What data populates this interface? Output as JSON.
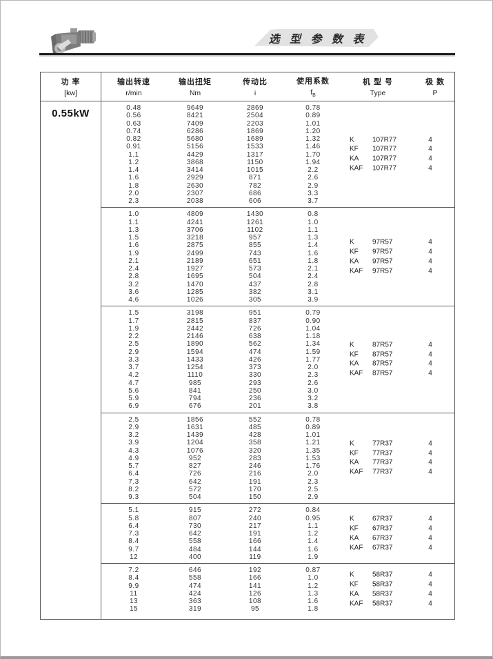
{
  "page": {
    "title": "选 型 参 数 表"
  },
  "table": {
    "headers": {
      "power": {
        "line1": "功  率",
        "line2": "[kw]"
      },
      "speed": {
        "line1": "输出转速",
        "line2": "r/min"
      },
      "torque": {
        "line1": "输出扭矩",
        "line2": "Nm"
      },
      "ratio": {
        "line1": "传动比",
        "line2": "i"
      },
      "factor": {
        "line1": "使用系数",
        "symbol": "f",
        "symbol_sub": "B"
      },
      "model": {
        "line1": "机 型 号",
        "line2": "Type"
      },
      "poles": {
        "line1": "极  数",
        "line2": "P"
      }
    },
    "power_value": "0.55kW",
    "groups": [
      {
        "rows": [
          [
            "0.48",
            "9649",
            "2869",
            "0.78"
          ],
          [
            "0.56",
            "8421",
            "2504",
            "0.89"
          ],
          [
            "0.63",
            "7409",
            "2203",
            "1.01"
          ],
          [
            "0.74",
            "6286",
            "1869",
            "1.20"
          ],
          [
            "0.82",
            "5680",
            "1689",
            "1.32"
          ],
          [
            "0.91",
            "5156",
            "1533",
            "1.46"
          ],
          [
            "1.1",
            "4429",
            "1317",
            "1.70"
          ],
          [
            "1.2",
            "3868",
            "1150",
            "1.94"
          ],
          [
            "1.4",
            "3414",
            "1015",
            "2.2"
          ],
          [
            "1.6",
            "2929",
            "871",
            "2.6"
          ],
          [
            "1.8",
            "2630",
            "782",
            "2.9"
          ],
          [
            "2.0",
            "2307",
            "686",
            "3.3"
          ],
          [
            "2.3",
            "2038",
            "606",
            "3.7"
          ]
        ],
        "models": [
          {
            "prefix": "K",
            "code": "107R77",
            "poles": "4"
          },
          {
            "prefix": "KF",
            "code": "107R77",
            "poles": "4"
          },
          {
            "prefix": "KA",
            "code": "107R77",
            "poles": "4"
          },
          {
            "prefix": "KAF",
            "code": "107R77",
            "poles": "4"
          }
        ]
      },
      {
        "rows": [
          [
            "1.0",
            "4809",
            "1430",
            "0.8"
          ],
          [
            "1.1",
            "4241",
            "1261",
            "1.0"
          ],
          [
            "1.3",
            "3706",
            "1102",
            "1.1"
          ],
          [
            "1.5",
            "3218",
            "957",
            "1.3"
          ],
          [
            "1.6",
            "2875",
            "855",
            "1.4"
          ],
          [
            "1.9",
            "2499",
            "743",
            "1.6"
          ],
          [
            "2.1",
            "2189",
            "651",
            "1.8"
          ],
          [
            "2.4",
            "1927",
            "573",
            "2.1"
          ],
          [
            "2.8",
            "1695",
            "504",
            "2.4"
          ],
          [
            "3.2",
            "1470",
            "437",
            "2.8"
          ],
          [
            "3.6",
            "1285",
            "382",
            "3.1"
          ],
          [
            "4.6",
            "1026",
            "305",
            "3.9"
          ]
        ],
        "models": [
          {
            "prefix": "K",
            "code": "97R57",
            "poles": "4"
          },
          {
            "prefix": "KF",
            "code": "97R57",
            "poles": "4"
          },
          {
            "prefix": "KA",
            "code": "97R57",
            "poles": "4"
          },
          {
            "prefix": "KAF",
            "code": "97R57",
            "poles": "4"
          }
        ]
      },
      {
        "rows": [
          [
            "1.5",
            "3198",
            "951",
            "0.79"
          ],
          [
            "1.7",
            "2815",
            "837",
            "0.90"
          ],
          [
            "1.9",
            "2442",
            "726",
            "1.04"
          ],
          [
            "2.2",
            "2146",
            "638",
            "1.18"
          ],
          [
            "2.5",
            "1890",
            "562",
            "1.34"
          ],
          [
            "2.9",
            "1594",
            "474",
            "1.59"
          ],
          [
            "3.3",
            "1433",
            "426",
            "1.77"
          ],
          [
            "3.7",
            "1254",
            "373",
            "2.0"
          ],
          [
            "4.2",
            "1110",
            "330",
            "2.3"
          ],
          [
            "4.7",
            "985",
            "293",
            "2.6"
          ],
          [
            "5.6",
            "841",
            "250",
            "3.0"
          ],
          [
            "5.9",
            "794",
            "236",
            "3.2"
          ],
          [
            "6.9",
            "676",
            "201",
            "3.8"
          ]
        ],
        "models": [
          {
            "prefix": "K",
            "code": "87R57",
            "poles": "4"
          },
          {
            "prefix": "KF",
            "code": "87R57",
            "poles": "4"
          },
          {
            "prefix": "KA",
            "code": "87R57",
            "poles": "4"
          },
          {
            "prefix": "KAF",
            "code": "87R57",
            "poles": "4"
          }
        ]
      },
      {
        "rows": [
          [
            "2.5",
            "1856",
            "552",
            "0.78"
          ],
          [
            "2.9",
            "1631",
            "485",
            "0.89"
          ],
          [
            "3.2",
            "1439",
            "428",
            "1.01"
          ],
          [
            "3.9",
            "1204",
            "358",
            "1.21"
          ],
          [
            "4.3",
            "1076",
            "320",
            "1.35"
          ],
          [
            "4.9",
            "952",
            "283",
            "1.53"
          ],
          [
            "5.7",
            "827",
            "246",
            "1.76"
          ],
          [
            "6.4",
            "726",
            "216",
            "2.0"
          ],
          [
            "7.3",
            "642",
            "191",
            "2.3"
          ],
          [
            "8.2",
            "572",
            "170",
            "2.5"
          ],
          [
            "9.3",
            "504",
            "150",
            "2.9"
          ]
        ],
        "models": [
          {
            "prefix": "K",
            "code": "77R37",
            "poles": "4"
          },
          {
            "prefix": "KF",
            "code": "77R37",
            "poles": "4"
          },
          {
            "prefix": "KA",
            "code": "77R37",
            "poles": "4"
          },
          {
            "prefix": "KAF",
            "code": "77R37",
            "poles": "4"
          }
        ]
      },
      {
        "rows": [
          [
            "5.1",
            "915",
            "272",
            "0.84"
          ],
          [
            "5.8",
            "807",
            "240",
            "0.95"
          ],
          [
            "6.4",
            "730",
            "217",
            "1.1"
          ],
          [
            "7.3",
            "642",
            "191",
            "1.2"
          ],
          [
            "8.4",
            "558",
            "166",
            "1.4"
          ],
          [
            "9.7",
            "484",
            "144",
            "1.6"
          ],
          [
            "12",
            "400",
            "119",
            "1.9"
          ]
        ],
        "models": [
          {
            "prefix": "K",
            "code": "67R37",
            "poles": "4"
          },
          {
            "prefix": "KF",
            "code": "67R37",
            "poles": "4"
          },
          {
            "prefix": "KA",
            "code": "67R37",
            "poles": "4"
          },
          {
            "prefix": "KAF",
            "code": "67R37",
            "poles": "4"
          }
        ]
      },
      {
        "rows": [
          [
            "7.2",
            "646",
            "192",
            "0.87"
          ],
          [
            "8.4",
            "558",
            "166",
            "1.0"
          ],
          [
            "9.9",
            "474",
            "141",
            "1.2"
          ],
          [
            "11",
            "424",
            "126",
            "1.3"
          ],
          [
            "13",
            "363",
            "108",
            "1.6"
          ],
          [
            "15",
            "319",
            "95",
            "1.8"
          ]
        ],
        "models": [
          {
            "prefix": "K",
            "code": "58R37",
            "poles": "4"
          },
          {
            "prefix": "KF",
            "code": "58R37",
            "poles": "4"
          },
          {
            "prefix": "KA",
            "code": "58R37",
            "poles": "4"
          },
          {
            "prefix": "KAF",
            "code": "58R37",
            "poles": "4"
          }
        ]
      }
    ]
  }
}
